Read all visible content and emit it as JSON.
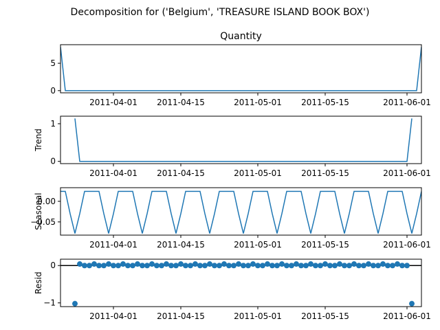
{
  "figure": {
    "suptitle": "Decomposition for ('Belgium', 'TREASURE ISLAND BOOK BOX')",
    "line_color": "#1f77b4",
    "zero_line_color": "#000000"
  },
  "chart_data": [
    {
      "type": "line",
      "title": "Quantity",
      "ylabel": "",
      "xlim": [
        "2011-03-21",
        "2011-06-04"
      ],
      "ylim": [
        -0.4,
        8.4
      ],
      "yticks": [
        0,
        5
      ],
      "ytick_labels": [
        "0",
        "5"
      ],
      "xticks": [
        "2011-04-01",
        "2011-04-15",
        "2011-05-01",
        "2011-05-15",
        "2011-06-01"
      ],
      "x": [
        "2011-03-21",
        "2011-03-22",
        "2011-06-03",
        "2011-06-04"
      ],
      "values": [
        8,
        0,
        0,
        8
      ]
    },
    {
      "type": "line",
      "title": "",
      "ylabel": "Trend",
      "xlim": [
        "2011-03-21",
        "2011-06-04"
      ],
      "ylim": [
        -0.06,
        1.2
      ],
      "yticks": [
        0,
        1
      ],
      "ytick_labels": [
        "0",
        "1"
      ],
      "xticks": [
        "2011-04-01",
        "2011-04-15",
        "2011-05-01",
        "2011-05-15",
        "2011-06-01"
      ],
      "x": [
        "2011-03-24",
        "2011-03-25",
        "2011-06-01",
        "2011-06-02"
      ],
      "values": [
        1.14,
        0,
        0,
        1.14
      ]
    },
    {
      "type": "line",
      "title": "",
      "ylabel": "Seasonal",
      "xlim": [
        "2011-03-21",
        "2011-06-04"
      ],
      "ylim": [
        -0.082,
        0.033
      ],
      "yticks": [
        0,
        -0.05
      ],
      "ytick_labels": [
        "0.00",
        "−0.05"
      ],
      "xticks": [
        "2011-04-01",
        "2011-04-15",
        "2011-05-01",
        "2011-05-15",
        "2011-06-01"
      ],
      "period": 7,
      "pattern": [
        0.024,
        0.024,
        -0.03,
        -0.078,
        -0.03,
        0.024,
        0.024
      ],
      "x_start": "2011-03-21",
      "x_end": "2011-06-04"
    },
    {
      "type": "scatter",
      "title": "",
      "ylabel": "Resid",
      "xlim": [
        "2011-03-21",
        "2011-06-04"
      ],
      "ylim": [
        -1.1,
        0.17
      ],
      "yticks": [
        0,
        -1
      ],
      "ytick_labels": [
        "0",
        "−1"
      ],
      "xticks": [
        "2011-04-01",
        "2011-04-15",
        "2011-05-01",
        "2011-05-15",
        "2011-06-01"
      ],
      "zero_line": true,
      "x_start": "2011-03-24",
      "x_end": "2011-06-02",
      "baseline": 0,
      "bump_value": 0.04,
      "bump_every": 3,
      "outliers": [
        {
          "x": "2011-03-24",
          "y": -1.02
        },
        {
          "x": "2011-06-02",
          "y": -1.02
        }
      ]
    }
  ]
}
